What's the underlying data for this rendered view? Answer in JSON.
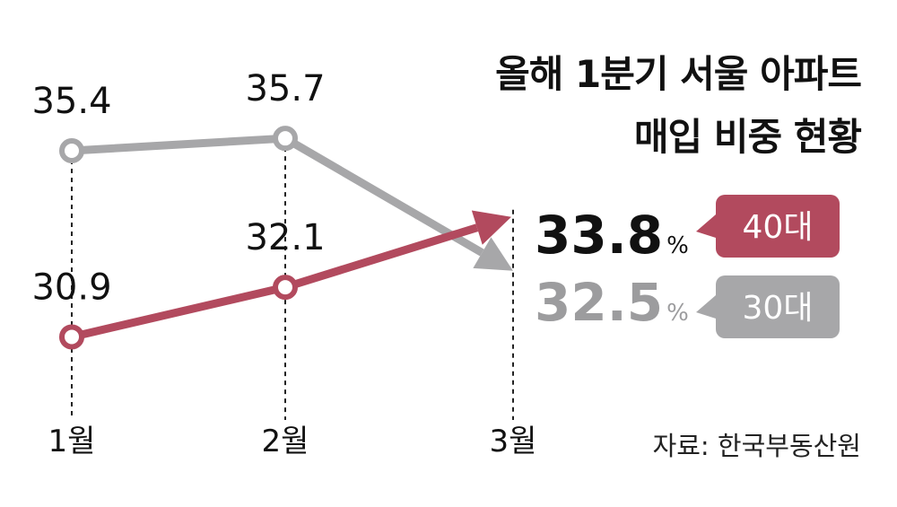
{
  "title_lines": [
    "올해 1분기 서울 아파트",
    "매입 비중 현황"
  ],
  "source": "자료: 한국부동산원",
  "percent_sign": "%",
  "colors": {
    "40대": "#b24a5e",
    "30대": "#a7a7a9",
    "text": "#111111"
  },
  "chart_data": {
    "type": "line",
    "categories": [
      "1월",
      "2월",
      "3월"
    ],
    "series": [
      {
        "name": "30대",
        "values": [
          35.4,
          35.7,
          32.5
        ],
        "labels": [
          "35.4",
          "35.7",
          "32.5"
        ]
      },
      {
        "name": "40대",
        "values": [
          30.9,
          32.1,
          33.8
        ],
        "labels": [
          "30.9",
          "32.1",
          "33.8"
        ]
      }
    ],
    "ylim": [
      29.5,
      36.5
    ],
    "grid": false,
    "legend": "right, tag boxes beside final values"
  }
}
